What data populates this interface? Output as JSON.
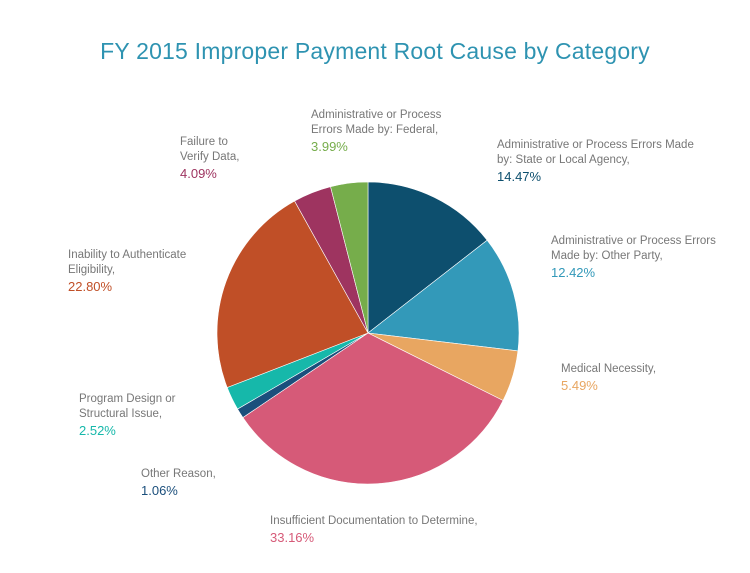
{
  "chart_data": {
    "type": "pie",
    "title": "FY 2015 Improper Payment Root Cause by Category",
    "slices": [
      {
        "label": "Administrative or Process Errors Made by: State or Local Agency,",
        "value": 14.47,
        "pct_text": "14.47%",
        "color": "#0d4f6e"
      },
      {
        "label": "Administrative or Process Errors Made by: Other Party,",
        "value": 12.42,
        "pct_text": "12.42%",
        "color": "#3399b9"
      },
      {
        "label": "Medical Necessity,",
        "value": 5.49,
        "pct_text": "5.49%",
        "color": "#e8a661"
      },
      {
        "label": "Insufficient Documentation to Determine,",
        "value": 33.16,
        "pct_text": "33.16%",
        "color": "#d65a78"
      },
      {
        "label": "Other Reason,",
        "value": 1.06,
        "pct_text": "1.06%",
        "color": "#1b4f7c"
      },
      {
        "label": "Program Design or Structural Issue,",
        "value": 2.52,
        "pct_text": "2.52%",
        "color": "#16b8aa"
      },
      {
        "label": "Inability to Authenticate Eligibility,",
        "value": 22.8,
        "pct_text": "22.80%",
        "color": "#c04f27"
      },
      {
        "label": "Failure to Verify Data,",
        "value": 4.09,
        "pct_text": "4.09%",
        "color": "#9e3460"
      },
      {
        "label": "Administrative or Process Errors Made by: Federal,",
        "value": 3.99,
        "pct_text": "3.99%",
        "color": "#76ad4b"
      }
    ]
  }
}
